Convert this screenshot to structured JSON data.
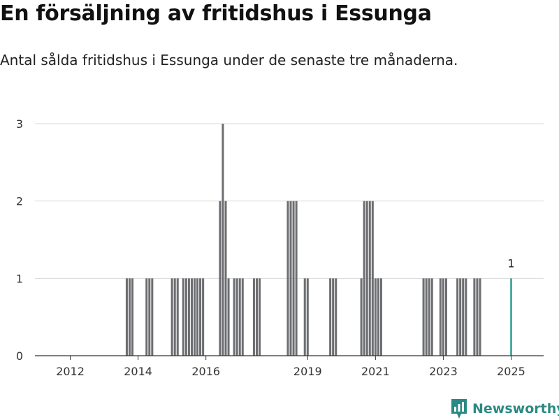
{
  "header": {
    "title": "En försäljning av fritidshus i Essunga",
    "subtitle": "Antal sålda fritidshus i Essunga under de senaste tre månaderna."
  },
  "brand": {
    "name": "Newsworthy",
    "color": "#2b8a83"
  },
  "chart_data": {
    "type": "bar",
    "xlim": [
      "2011-01",
      "2025-12"
    ],
    "ylim": [
      0,
      3
    ],
    "yticks": [
      "0",
      "1",
      "2",
      "3"
    ],
    "xticks": [
      {
        "month": "2012-01",
        "label": "2012"
      },
      {
        "month": "2014-01",
        "label": "2014"
      },
      {
        "month": "2016-01",
        "label": "2016"
      },
      {
        "month": "2019-01",
        "label": "2019"
      },
      {
        "month": "2021-01",
        "label": "2021"
      },
      {
        "month": "2023-01",
        "label": "2023"
      },
      {
        "month": "2025-01",
        "label": "2025"
      }
    ],
    "grid": true,
    "bar_color": "#6d6e71",
    "highlight_color": "#2a9d8f",
    "bars": [
      {
        "month": "2013-09",
        "value": 1
      },
      {
        "month": "2013-10",
        "value": 1
      },
      {
        "month": "2013-11",
        "value": 1
      },
      {
        "month": "2014-04",
        "value": 1
      },
      {
        "month": "2014-05",
        "value": 1
      },
      {
        "month": "2014-06",
        "value": 1
      },
      {
        "month": "2015-01",
        "value": 1
      },
      {
        "month": "2015-02",
        "value": 1
      },
      {
        "month": "2015-03",
        "value": 1
      },
      {
        "month": "2015-05",
        "value": 1
      },
      {
        "month": "2015-06",
        "value": 1
      },
      {
        "month": "2015-07",
        "value": 1
      },
      {
        "month": "2015-08",
        "value": 1
      },
      {
        "month": "2015-09",
        "value": 1
      },
      {
        "month": "2015-10",
        "value": 1
      },
      {
        "month": "2015-11",
        "value": 1
      },
      {
        "month": "2015-12",
        "value": 1
      },
      {
        "month": "2016-06",
        "value": 2
      },
      {
        "month": "2016-07",
        "value": 3
      },
      {
        "month": "2016-08",
        "value": 2
      },
      {
        "month": "2016-09",
        "value": 1
      },
      {
        "month": "2016-11",
        "value": 1
      },
      {
        "month": "2016-12",
        "value": 1
      },
      {
        "month": "2017-01",
        "value": 1
      },
      {
        "month": "2017-02",
        "value": 1
      },
      {
        "month": "2017-06",
        "value": 1
      },
      {
        "month": "2017-07",
        "value": 1
      },
      {
        "month": "2017-08",
        "value": 1
      },
      {
        "month": "2018-06",
        "value": 2
      },
      {
        "month": "2018-07",
        "value": 2
      },
      {
        "month": "2018-08",
        "value": 2
      },
      {
        "month": "2018-09",
        "value": 2
      },
      {
        "month": "2018-12",
        "value": 1
      },
      {
        "month": "2019-01",
        "value": 1
      },
      {
        "month": "2019-09",
        "value": 1
      },
      {
        "month": "2019-10",
        "value": 1
      },
      {
        "month": "2019-11",
        "value": 1
      },
      {
        "month": "2020-08",
        "value": 1
      },
      {
        "month": "2020-09",
        "value": 2
      },
      {
        "month": "2020-10",
        "value": 2
      },
      {
        "month": "2020-11",
        "value": 2
      },
      {
        "month": "2020-12",
        "value": 2
      },
      {
        "month": "2021-01",
        "value": 1
      },
      {
        "month": "2021-02",
        "value": 1
      },
      {
        "month": "2021-03",
        "value": 1
      },
      {
        "month": "2022-06",
        "value": 1
      },
      {
        "month": "2022-07",
        "value": 1
      },
      {
        "month": "2022-08",
        "value": 1
      },
      {
        "month": "2022-09",
        "value": 1
      },
      {
        "month": "2022-12",
        "value": 1
      },
      {
        "month": "2023-01",
        "value": 1
      },
      {
        "month": "2023-02",
        "value": 1
      },
      {
        "month": "2023-06",
        "value": 1
      },
      {
        "month": "2023-07",
        "value": 1
      },
      {
        "month": "2023-08",
        "value": 1
      },
      {
        "month": "2023-09",
        "value": 1
      },
      {
        "month": "2023-12",
        "value": 1
      },
      {
        "month": "2024-01",
        "value": 1
      },
      {
        "month": "2024-02",
        "value": 1
      },
      {
        "month": "2025-01",
        "value": 1,
        "highlight": true,
        "label": "1"
      }
    ]
  }
}
